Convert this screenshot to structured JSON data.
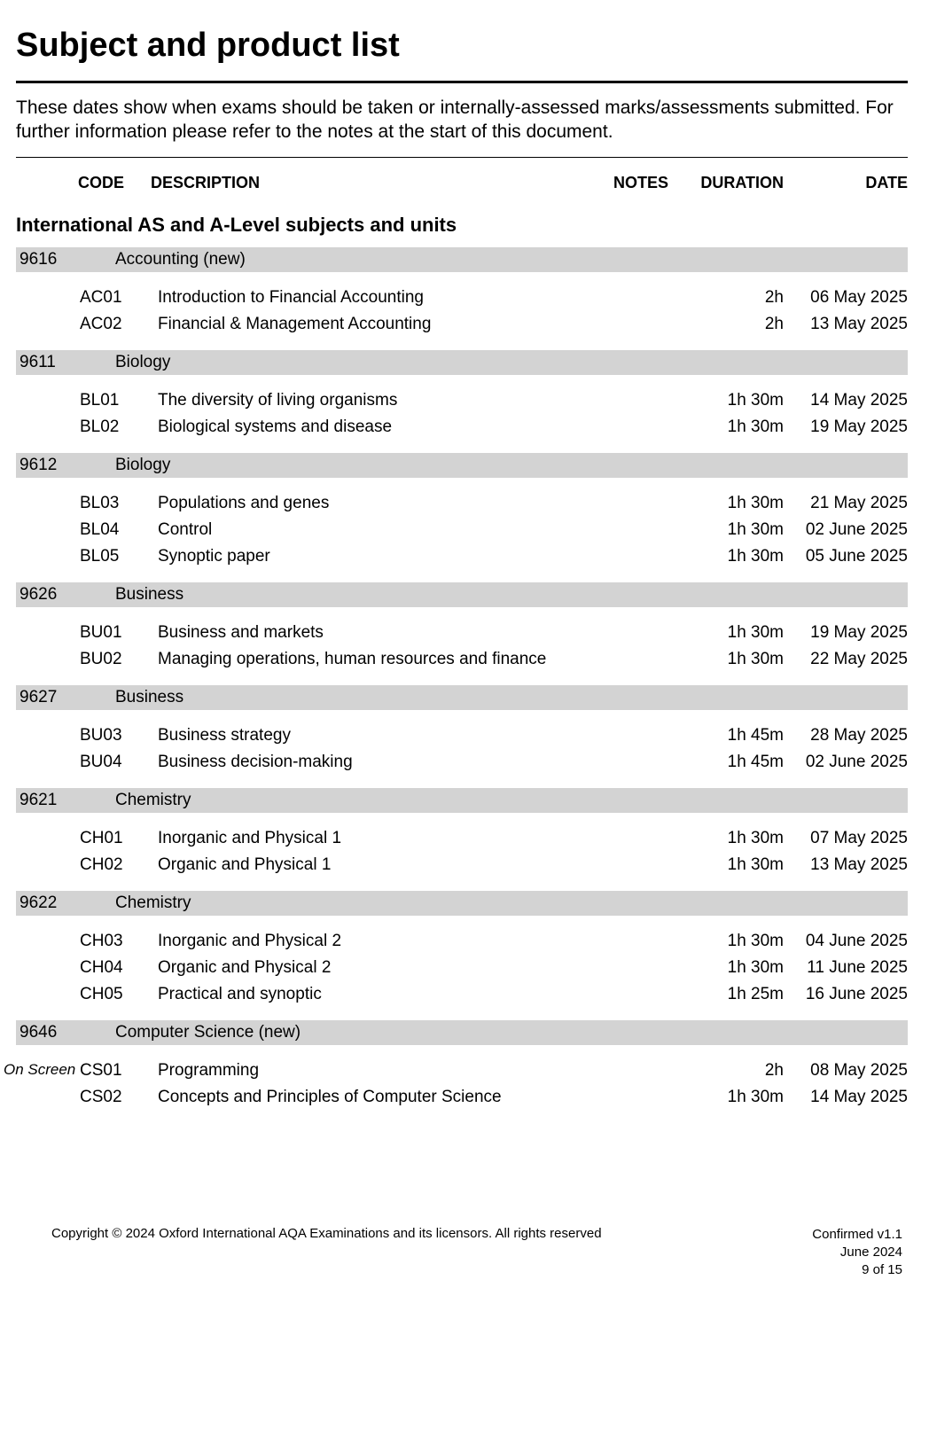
{
  "page": {
    "title": "Subject and product list",
    "intro": "These dates show when exams should be taken or internally-assessed marks/assessments submitted.  For further information please refer to the notes at the start of this document.",
    "columns": {
      "code": "CODE",
      "description": "DESCRIPTION",
      "notes": "NOTES",
      "duration": "DURATION",
      "date": "DATE"
    },
    "section_title": "International AS and A-Level subjects and units"
  },
  "subjects": [
    {
      "code": "9616",
      "name": "Accounting (new)",
      "units": [
        {
          "note": "",
          "code": "AC01",
          "desc": "Introduction to Financial Accounting",
          "duration": "2h",
          "date": "06 May 2025"
        },
        {
          "note": "",
          "code": "AC02",
          "desc": "Financial & Management Accounting",
          "duration": "2h",
          "date": "13 May 2025"
        }
      ]
    },
    {
      "code": "9611",
      "name": "Biology",
      "units": [
        {
          "note": "",
          "code": "BL01",
          "desc": "The diversity of living organisms",
          "duration": "1h 30m",
          "date": "14 May 2025"
        },
        {
          "note": "",
          "code": "BL02",
          "desc": "Biological systems and disease",
          "duration": "1h 30m",
          "date": "19 May 2025"
        }
      ]
    },
    {
      "code": "9612",
      "name": "Biology",
      "units": [
        {
          "note": "",
          "code": "BL03",
          "desc": "Populations and genes",
          "duration": "1h 30m",
          "date": "21 May 2025"
        },
        {
          "note": "",
          "code": "BL04",
          "desc": "Control",
          "duration": "1h 30m",
          "date": "02 June 2025"
        },
        {
          "note": "",
          "code": "BL05",
          "desc": "Synoptic paper",
          "duration": "1h 30m",
          "date": "05 June 2025"
        }
      ]
    },
    {
      "code": "9626",
      "name": "Business",
      "units": [
        {
          "note": "",
          "code": "BU01",
          "desc": "Business and markets",
          "duration": "1h 30m",
          "date": "19 May 2025"
        },
        {
          "note": "",
          "code": "BU02",
          "desc": "Managing operations, human resources and finance",
          "duration": "1h 30m",
          "date": "22 May 2025"
        }
      ]
    },
    {
      "code": "9627",
      "name": "Business",
      "units": [
        {
          "note": "",
          "code": "BU03",
          "desc": "Business strategy",
          "duration": "1h 45m",
          "date": "28 May 2025"
        },
        {
          "note": "",
          "code": "BU04",
          "desc": "Business decision-making",
          "duration": "1h 45m",
          "date": "02 June 2025"
        }
      ]
    },
    {
      "code": "9621",
      "name": "Chemistry",
      "units": [
        {
          "note": "",
          "code": "CH01",
          "desc": "Inorganic and Physical 1",
          "duration": "1h 30m",
          "date": "07 May 2025"
        },
        {
          "note": "",
          "code": "CH02",
          "desc": "Organic and Physical 1",
          "duration": "1h 30m",
          "date": "13 May 2025"
        }
      ]
    },
    {
      "code": "9622",
      "name": "Chemistry",
      "units": [
        {
          "note": "",
          "code": "CH03",
          "desc": "Inorganic and Physical 2",
          "duration": "1h 30m",
          "date": "04 June 2025"
        },
        {
          "note": "",
          "code": "CH04",
          "desc": "Organic and Physical 2",
          "duration": "1h 30m",
          "date": "11 June 2025"
        },
        {
          "note": "",
          "code": "CH05",
          "desc": "Practical and synoptic",
          "duration": "1h 25m",
          "date": "16 June 2025"
        }
      ]
    },
    {
      "code": "9646",
      "name": "Computer Science (new)",
      "units": [
        {
          "note": "On Screen",
          "code": "CS01",
          "desc": "Programming",
          "duration": "2h",
          "date": "08 May 2025"
        },
        {
          "note": "",
          "code": "CS02",
          "desc": "Concepts and Principles of Computer Science",
          "duration": "1h 30m",
          "date": "14 May 2025"
        }
      ]
    }
  ],
  "footer": {
    "copyright": "Copyright © 2024 Oxford International AQA Examinations and its licensors. All rights reserved",
    "version": "Confirmed v1.1",
    "date": "June 2024",
    "page": "9 of 15"
  },
  "style": {
    "background": "#ffffff",
    "subject_bar_bg": "#d3d3d3",
    "text_color": "#000000"
  }
}
